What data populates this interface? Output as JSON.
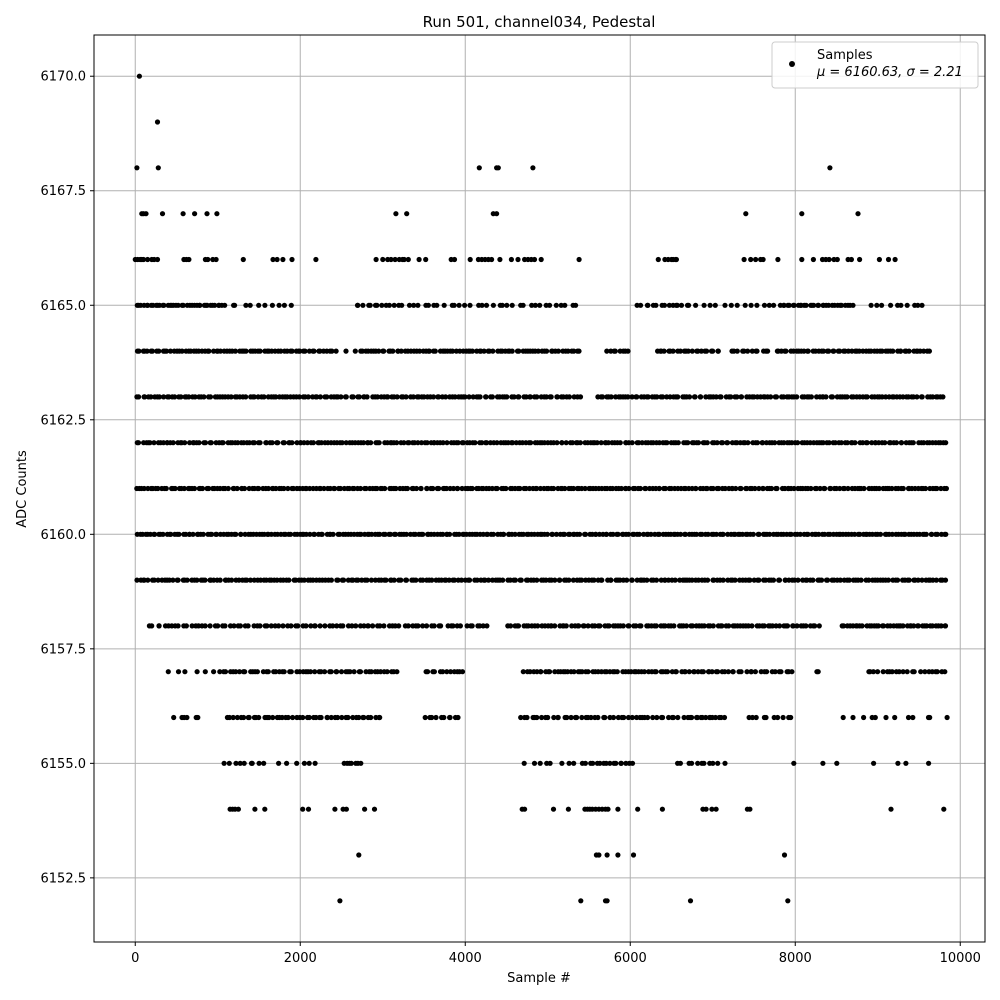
{
  "chart_data": {
    "type": "scatter",
    "title": "Run 501, channel034, Pedestal",
    "xlabel": "Sample #",
    "ylabel": "ADC Counts",
    "xlim": [
      -500,
      10300
    ],
    "ylim": [
      6151.1,
      6170.9
    ],
    "x_ticks": [
      0,
      2000,
      4000,
      6000,
      8000,
      10000
    ],
    "x_tick_labels": [
      "0",
      "2000",
      "4000",
      "6000",
      "8000",
      "10000"
    ],
    "y_ticks": [
      6152.5,
      6155.0,
      6157.5,
      6160.0,
      6162.5,
      6165.0,
      6167.5,
      6170.0
    ],
    "y_tick_labels": [
      "6152.5",
      "6155.0",
      "6157.5",
      "6160.0",
      "6162.5",
      "6165.0",
      "6167.5",
      "6170.0"
    ],
    "grid": true,
    "marker_color": "#000000",
    "legend": {
      "position": "top-right",
      "series_label": "Samples",
      "stats_label": "μ = 6160.63, σ = 2.21"
    },
    "n_samples": 9840,
    "series": [
      {
        "name": "Samples",
        "points_by_level": {
          "6170": [
            50
          ],
          "6169": [
            270
          ],
          "6168": [
            20,
            280,
            4170,
            4380,
            4400,
            4820,
            8420
          ],
          "6167": [
            80,
            100,
            130,
            330,
            580,
            720,
            870,
            990,
            3160,
            3290,
            4340,
            4380,
            7400,
            8080,
            8760
          ],
          "6166": [
            0,
            30,
            60,
            80,
            100,
            150,
            200,
            230,
            270,
            590,
            620,
            650,
            850,
            880,
            940,
            980,
            1310,
            1670,
            1720,
            1790,
            1900,
            2190,
            2920,
            3000,
            3060,
            3100,
            3150,
            3200,
            3240,
            3260,
            3310,
            3440,
            3520,
            3830,
            3870,
            4060,
            4160,
            4200,
            4240,
            4280,
            4320,
            4420,
            4560,
            4640,
            4720,
            4760,
            4800,
            4840,
            4920,
            5380,
            6340,
            6420,
            6460,
            6500,
            6520,
            6550,
            6560,
            7380,
            7460,
            7520,
            7580,
            7610,
            7790,
            8080,
            8220,
            8330,
            8370,
            8410,
            8470,
            8510,
            8640,
            8680,
            8780,
            9020,
            9130,
            9210
          ]
        },
        "dense_levels": {
          "6165": [
            [
              0,
              1100,
              38
            ],
            [
              1120,
              1900,
              10
            ],
            [
              2650,
              3200,
              12
            ],
            [
              3200,
              5400,
              34
            ],
            [
              6080,
              6700,
              14
            ],
            [
              6700,
              7800,
              14
            ],
            [
              7800,
              8700,
              30
            ],
            [
              8900,
              9600,
              10
            ]
          ],
          "6164": [
            [
              0,
              2400,
              70
            ],
            [
              2400,
              2700,
              3
            ],
            [
              2700,
              5400,
              78
            ],
            [
              5700,
              6000,
              8
            ],
            [
              6300,
              7100,
              22
            ],
            [
              7200,
              7700,
              12
            ],
            [
              7750,
              9650,
              56
            ]
          ],
          "6163": [
            [
              0,
              5400,
              150
            ],
            [
              5580,
              9820,
              120
            ]
          ],
          "6162": [
            [
              0,
              9850,
              280
            ]
          ],
          "6161": [
            [
              0,
              9850,
              290
            ]
          ],
          "6160": [
            [
              0,
              9850,
              300
            ]
          ],
          "6159": [
            [
              0,
              9850,
              270
            ]
          ],
          "6158": [
            [
              150,
              4300,
              90
            ],
            [
              4500,
              8300,
              105
            ],
            [
              8550,
              9850,
              40
            ]
          ],
          "6157": [
            [
              330,
              1000,
              6
            ],
            [
              1000,
              3200,
              55
            ],
            [
              3500,
              4000,
              12
            ],
            [
              4700,
              7200,
              70
            ],
            [
              7200,
              8000,
              18
            ],
            [
              8250,
              8300,
              2
            ],
            [
              8850,
              9850,
              22
            ]
          ],
          "6156": [
            [
              450,
              800,
              6
            ],
            [
              1100,
              3000,
              48
            ],
            [
              3500,
              3950,
              10
            ],
            [
              4650,
              6600,
              45
            ],
            [
              6650,
              7150,
              16
            ],
            [
              7400,
              8000,
              10
            ],
            [
              8500,
              9850,
              12
            ]
          ],
          "6155": [
            [
              1050,
              1600,
              9
            ],
            [
              1700,
              2250,
              6
            ],
            [
              2500,
              2750,
              7
            ],
            [
              4700,
              5350,
              8
            ],
            [
              5400,
              6050,
              16
            ],
            [
              6550,
              7150,
              11
            ],
            [
              7980,
              9800,
              7
            ]
          ]
        },
        "points_by_level_sparse": {
          "6154": [
            1150,
            1180,
            1210,
            1250,
            1450,
            1570,
            2030,
            2100,
            2420,
            2520,
            2560,
            2780,
            2900,
            4690,
            4720,
            5070,
            5250,
            5450,
            5480,
            5510,
            5540,
            5580,
            5620,
            5660,
            5700,
            5730,
            5850,
            6090,
            6390,
            6880,
            6920,
            6990,
            7040,
            7420,
            7450,
            9160,
            9800
          ],
          "6153": [
            2710,
            5590,
            5620,
            5720,
            5850,
            6040,
            7870
          ],
          "6152": [
            2480,
            5400,
            5700,
            5720,
            6730,
            7910
          ]
        }
      }
    ]
  }
}
